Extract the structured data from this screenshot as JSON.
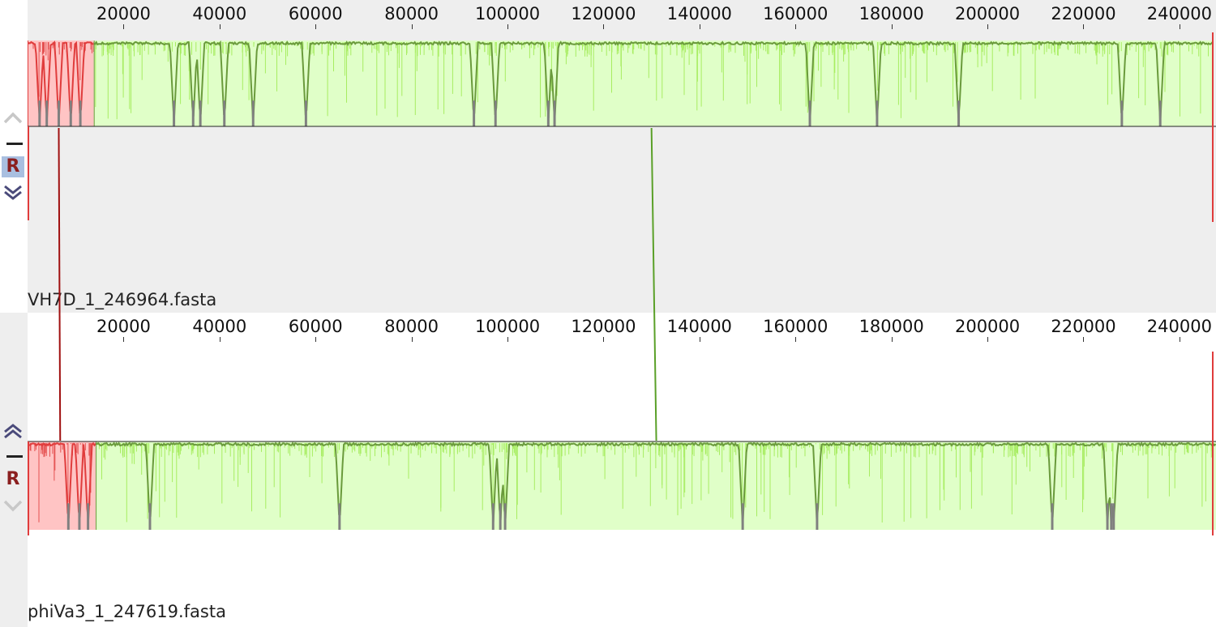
{
  "ruler": {
    "max": 247619,
    "ticks": [
      "20000",
      "40000",
      "60000",
      "80000",
      "100000",
      "120000",
      "140000",
      "160000",
      "180000",
      "200000",
      "220000",
      "240000"
    ],
    "tick_values": [
      20000,
      40000,
      60000,
      80000,
      100000,
      120000,
      140000,
      160000,
      180000,
      200000,
      220000,
      240000
    ]
  },
  "genomes": [
    {
      "name": "VH7D_1_246964.fasta",
      "length": 246964,
      "controls": {
        "up": "up-chevron-icon",
        "minus": "minus-icon",
        "reverse": "R",
        "down": "down-chevron-icon"
      },
      "reverse_selected": true
    },
    {
      "name": "phiVa3_1_247619.fasta",
      "length": 247619,
      "controls": {
        "up": "up-chevron-icon",
        "minus": "minus-icon",
        "reverse": "R",
        "down": "down-chevron-icon"
      },
      "reverse_selected": false
    }
  ],
  "colors": {
    "lcb_red_fill": "#ffc4c4",
    "lcb_red_line": "#e03c3c",
    "lcb_green_fill": "#e0ffc8",
    "lcb_green_line": "#6a9a3c",
    "lcb_green_spikes": "#9eea50",
    "gap_gray": "#808080",
    "connector_red": "#a01010",
    "connector_green": "#5aa028"
  },
  "lcbs": [
    {
      "color": "red",
      "g1_start": 0,
      "g1_end": 13800,
      "g2_start": 0,
      "g2_end": 14200,
      "dips_g1": [
        2500,
        4000,
        6500,
        9000,
        11000
      ],
      "dips_g2": [
        8500,
        10800,
        12600
      ]
    },
    {
      "color": "green",
      "g1_start": 13800,
      "g1_end": 246964,
      "g2_start": 14200,
      "g2_end": 247619,
      "dips_g1": [
        30500,
        34500,
        36000,
        41000,
        47000,
        58000,
        93000,
        97500,
        108500,
        109800,
        163000,
        177000,
        194000,
        228000,
        236000
      ],
      "dips_g2": [
        25500,
        65000,
        97000,
        98500,
        99500,
        149000,
        164500,
        213500,
        225000,
        225800,
        226300
      ]
    }
  ],
  "connectors": [
    {
      "color": "red",
      "g1_pos": 6500,
      "g2_pos": 6800
    },
    {
      "color": "green",
      "g1_pos": 130000,
      "g2_pos": 131000
    }
  ]
}
